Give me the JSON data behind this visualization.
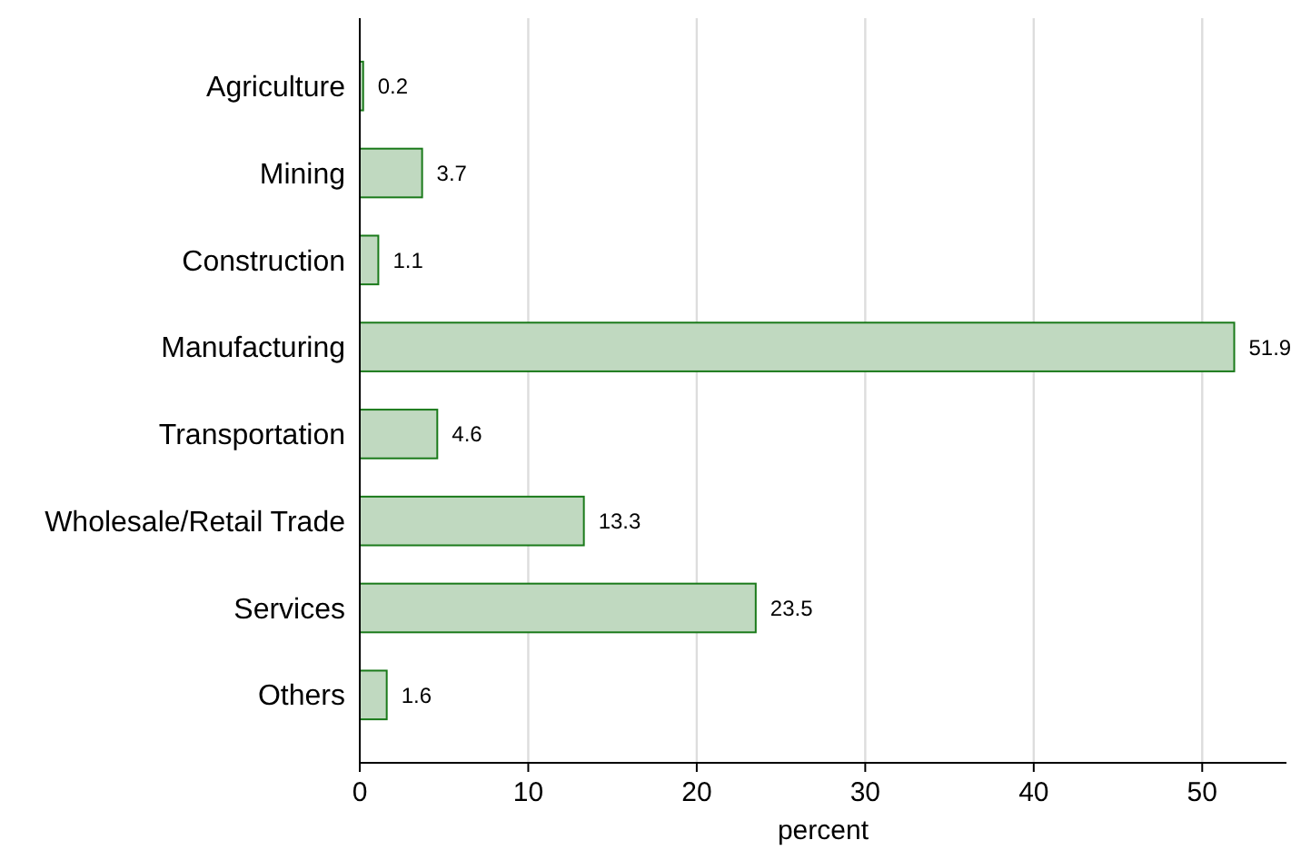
{
  "chart_data": {
    "type": "bar",
    "orientation": "horizontal",
    "xlabel": "percent",
    "categories": [
      "Agriculture",
      "Mining",
      "Construction",
      "Manufacturing",
      "Transportation",
      "Wholesale/Retail Trade",
      "Services",
      "Others"
    ],
    "values": [
      0.2,
      3.7,
      1.1,
      51.9,
      4.6,
      13.3,
      23.5,
      1.6
    ],
    "color": "#c0d9c0",
    "xlim": [
      0,
      55
    ],
    "xticks": [
      0,
      10,
      20,
      30,
      40,
      50
    ],
    "grid": "x",
    "data_labels": true
  }
}
